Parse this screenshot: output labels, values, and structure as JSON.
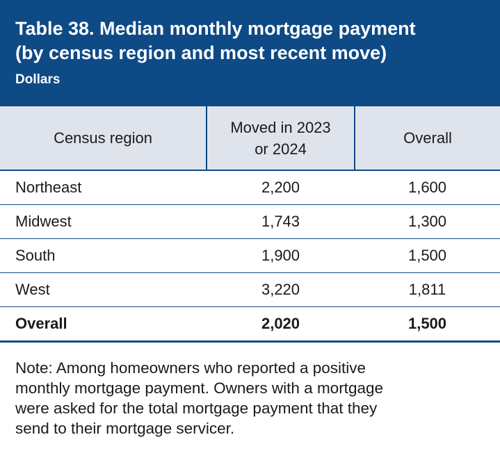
{
  "header": {
    "title_line1": "Table 38. Median monthly mortgage payment",
    "title_line2": "(by census region and most recent move)",
    "subtitle": "Dollars"
  },
  "table": {
    "columns": {
      "region": "Census region",
      "moved_line1": "Moved in 2023",
      "moved_line2": "or 2024",
      "overall": "Overall"
    },
    "rows": [
      {
        "region": "Northeast",
        "moved": "2,200",
        "overall": "1,600"
      },
      {
        "region": "Midwest",
        "moved": "1,743",
        "overall": "1,300"
      },
      {
        "region": "South",
        "moved": "1,900",
        "overall": "1,500"
      },
      {
        "region": "West",
        "moved": "3,220",
        "overall": "1,811"
      }
    ],
    "total": {
      "region": "Overall",
      "moved": "2,020",
      "overall": "1,500"
    }
  },
  "note": {
    "line1": "Note: Among homeowners who reported a positive",
    "line2": "monthly mortgage payment. Owners with a mortgage",
    "line3": "were asked for the total mortgage payment that they",
    "line4": "send to their mortgage servicer."
  },
  "colors": {
    "header_bg": "#0e4a85",
    "column_header_bg": "#dfe4ec",
    "rule": "#0e4a85"
  }
}
